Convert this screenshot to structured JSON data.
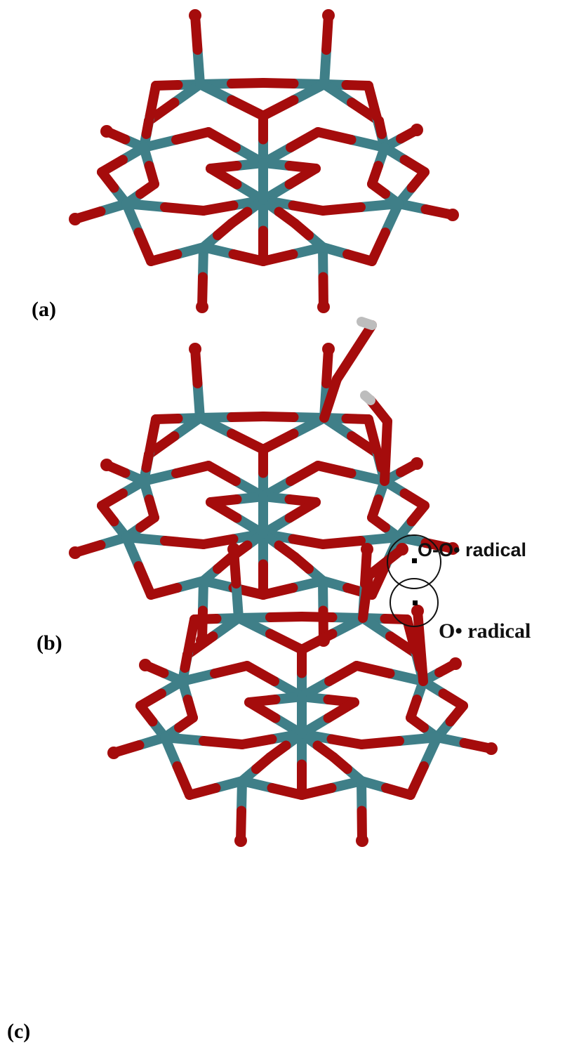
{
  "panels": [
    {
      "label": "(a)"
    },
    {
      "label": "(b)"
    },
    {
      "label": "(c)"
    }
  ],
  "annotations": [
    {
      "text": "O-O• radical"
    },
    {
      "text": "O• radical"
    }
  ]
}
